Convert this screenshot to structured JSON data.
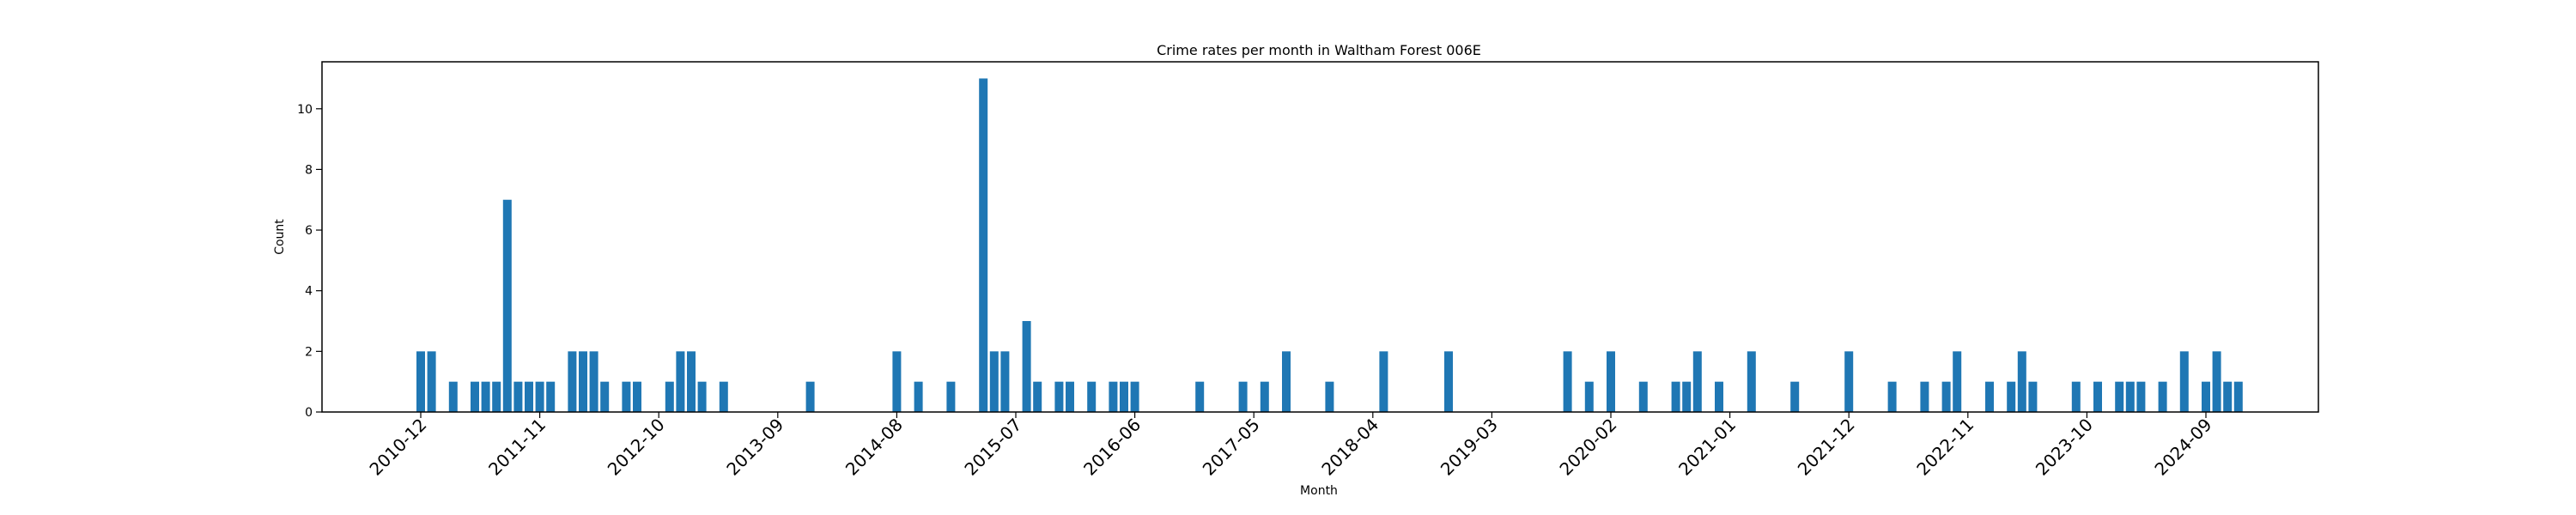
{
  "chart_data": {
    "type": "bar",
    "title": "Crime rates per month in Waltham Forest 006E",
    "xlabel": "Month",
    "ylabel": "Count",
    "ylim": [
      0,
      11.55
    ],
    "yticks": [
      0,
      2,
      4,
      6,
      8,
      10
    ],
    "xtick_labels": [
      "2010-12",
      "2011-11",
      "2012-10",
      "2013-09",
      "2014-08",
      "2015-07",
      "2016-06",
      "2017-05",
      "2018-04",
      "2019-03",
      "2020-02",
      "2021-01",
      "2021-12",
      "2022-11",
      "2023-10",
      "2024-09"
    ],
    "bar_color": "#1f77b4",
    "grid": false,
    "series": [
      {
        "values": [
          [
            "2010-12",
            2
          ],
          [
            "2011-01",
            2
          ],
          [
            "2011-03",
            1
          ],
          [
            "2011-05",
            1
          ],
          [
            "2011-06",
            1
          ],
          [
            "2011-07",
            1
          ],
          [
            "2011-08",
            7
          ],
          [
            "2011-09",
            1
          ],
          [
            "2011-10",
            1
          ],
          [
            "2011-11",
            1
          ],
          [
            "2011-12",
            1
          ],
          [
            "2012-02",
            2
          ],
          [
            "2012-03",
            2
          ],
          [
            "2012-04",
            2
          ],
          [
            "2012-05",
            1
          ],
          [
            "2012-07",
            1
          ],
          [
            "2012-08",
            1
          ],
          [
            "2012-11",
            1
          ],
          [
            "2012-12",
            2
          ],
          [
            "2013-01",
            2
          ],
          [
            "2013-02",
            1
          ],
          [
            "2013-04",
            1
          ],
          [
            "2013-12",
            1
          ],
          [
            "2014-08",
            2
          ],
          [
            "2014-10",
            1
          ],
          [
            "2015-01",
            1
          ],
          [
            "2015-04",
            11
          ],
          [
            "2015-05",
            2
          ],
          [
            "2015-06",
            2
          ],
          [
            "2015-08",
            3
          ],
          [
            "2015-09",
            1
          ],
          [
            "2015-11",
            1
          ],
          [
            "2015-12",
            1
          ],
          [
            "2016-02",
            1
          ],
          [
            "2016-04",
            1
          ],
          [
            "2016-05",
            1
          ],
          [
            "2016-06",
            1
          ],
          [
            "2016-12",
            1
          ],
          [
            "2017-04",
            1
          ],
          [
            "2017-06",
            1
          ],
          [
            "2017-08",
            2
          ],
          [
            "2017-12",
            1
          ],
          [
            "2018-05",
            2
          ],
          [
            "2018-11",
            2
          ],
          [
            "2019-10",
            2
          ],
          [
            "2019-12",
            1
          ],
          [
            "2020-02",
            2
          ],
          [
            "2020-05",
            1
          ],
          [
            "2020-08",
            1
          ],
          [
            "2020-09",
            1
          ],
          [
            "2020-10",
            2
          ],
          [
            "2020-12",
            1
          ],
          [
            "2021-03",
            2
          ],
          [
            "2021-07",
            1
          ],
          [
            "2021-12",
            2
          ],
          [
            "2022-04",
            1
          ],
          [
            "2022-07",
            1
          ],
          [
            "2022-09",
            1
          ],
          [
            "2022-10",
            2
          ],
          [
            "2023-01",
            1
          ],
          [
            "2023-03",
            1
          ],
          [
            "2023-04",
            2
          ],
          [
            "2023-05",
            1
          ],
          [
            "2023-09",
            1
          ],
          [
            "2023-11",
            1
          ],
          [
            "2024-01",
            1
          ],
          [
            "2024-02",
            1
          ],
          [
            "2024-03",
            1
          ],
          [
            "2024-05",
            1
          ],
          [
            "2024-07",
            2
          ],
          [
            "2024-09",
            1
          ],
          [
            "2024-10",
            2
          ],
          [
            "2024-11",
            1
          ],
          [
            "2024-12",
            1
          ]
        ]
      }
    ]
  }
}
